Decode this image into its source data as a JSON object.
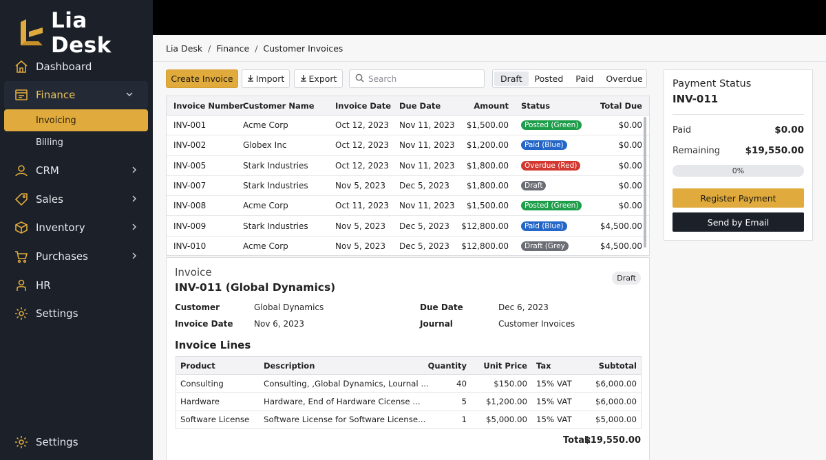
{
  "app": {
    "name": "Lia Desk"
  },
  "colors": {
    "accent": "#e0ab3c",
    "sidebar": "#1b2029",
    "green": "#1e9e4a",
    "blue": "#2467c9",
    "red": "#d2382f",
    "grey": "#6b6e74"
  },
  "sidebar": {
    "items": [
      {
        "label": "Dashboard",
        "icon": "home-icon"
      },
      {
        "label": "Finance",
        "icon": "ledger-icon"
      },
      {
        "label": "CRM",
        "icon": "user-icon"
      },
      {
        "label": "Sales",
        "icon": "tag-icon"
      },
      {
        "label": "Inventory",
        "icon": "box-icon"
      },
      {
        "label": "Purchases",
        "icon": "cart-icon"
      },
      {
        "label": "HR",
        "icon": "person-icon"
      },
      {
        "label": "Settings",
        "icon": "gear-icon"
      }
    ],
    "finance_sub": [
      "Invoicing",
      "Billing"
    ],
    "bottom_settings": "Settings"
  },
  "breadcrumb": [
    "Lia Desk",
    "Finance",
    "Customer Invoices"
  ],
  "toolbar": {
    "create": "Create Invoice",
    "import": "Import",
    "export": "Export",
    "search_placeholder": "Search",
    "filters": [
      "Draft",
      "Posted",
      "Paid",
      "Overdue"
    ]
  },
  "invoices": {
    "columns": [
      "Invoice Number",
      "Customer Name",
      "Invoice Date",
      "Due Date",
      "Amount",
      "Status",
      "Total Due"
    ],
    "rows": [
      {
        "num": "INV-001",
        "customer": "Acme Corp",
        "date": "Oct 12, 2023",
        "due": "Nov 11, 2023",
        "amount": "$1,500.00",
        "status": "Posted (Green)",
        "status_color": "#1e9e4a",
        "total": "$0.00"
      },
      {
        "num": "INV-002",
        "customer": "Globex Inc",
        "date": "Oct 12, 2023",
        "due": "Nov 11, 2023",
        "amount": "$1,200.00",
        "status": "Paid (Blue)",
        "status_color": "#2467c9",
        "total": "$0.00"
      },
      {
        "num": "INV-005",
        "customer": "Stark Industries",
        "date": "Oct 12, 2023",
        "due": "Nov 11, 2023",
        "amount": "$1,800.00",
        "status": "Overdue (Red)",
        "status_color": "#d2382f",
        "total": "$0.00"
      },
      {
        "num": "INV-007",
        "customer": "Stark Industries",
        "date": "Nov 5, 2023",
        "due": "Dec 5, 2023",
        "amount": "$1,800.00",
        "status": "Draft",
        "status_color": "#6b6e74",
        "total": "$0.00"
      },
      {
        "num": "INV-008",
        "customer": "Acme Corp",
        "date": "Oct 11, 2023",
        "due": "Nov 11, 2023",
        "amount": "$1,500.00",
        "status": "Posted (Green)",
        "status_color": "#1e9e4a",
        "total": "$0.00"
      },
      {
        "num": "INV-009",
        "customer": "Stark Industries",
        "date": "Nov 5, 2023",
        "due": "Dec 5, 2023",
        "amount": "$12,800.00",
        "status": "Paid (Blue)",
        "status_color": "#2467c9",
        "total": "$4,500.00"
      },
      {
        "num": "INV-010",
        "customer": "Acme Corp",
        "date": "Nov 5, 2023",
        "due": "Dec 5, 2023",
        "amount": "$12,800.00",
        "status": "Draft (Grey",
        "status_color": "#6b6e74",
        "total": "$4,500.00"
      }
    ]
  },
  "detail": {
    "title": "Invoice",
    "number": "INV-011 (Global Dynamics)",
    "status": "Draft",
    "customer_label": "Customer",
    "customer": "Global Dynamics",
    "invoice_date_label": "Invoice Date",
    "invoice_date": "Nov 6, 2023",
    "due_date_label": "Due Date",
    "due_date": "Dec 6, 2023",
    "journal_label": "Journal",
    "journal": "Customer Invoices",
    "lines_title": "Invoice Lines",
    "line_columns": [
      "Product",
      "Description",
      "Quantity",
      "Unit Price",
      "Tax",
      "Subtotal"
    ],
    "lines": [
      {
        "product": "Consulting",
        "desc": "Consulting, ,Global Dynamics, Lournal ...",
        "qty": "40",
        "price": "$150.00",
        "tax": "15% VAT",
        "subtotal": "$6,000.00"
      },
      {
        "product": "Hardware",
        "desc": "Hardware, End of Hardware Cicense ...",
        "qty": "5",
        "price": "$1,200.00",
        "tax": "15% VAT",
        "subtotal": "$6,000.00"
      },
      {
        "product": "Software License",
        "desc": "Software License for Software License...",
        "qty": "1",
        "price": "$5,000.00",
        "tax": "15% VAT",
        "subtotal": "$5,000.00"
      }
    ],
    "total_label": "Total:",
    "total": "$19,550.00"
  },
  "payment": {
    "title": "Payment Status",
    "invoice": "INV-011",
    "paid_label": "Paid",
    "paid": "$0.00",
    "remaining_label": "Remaining",
    "remaining": "$19,550.00",
    "progress_percent": 0,
    "progress_text": "0%",
    "register": "Register Payment",
    "send": "Send by Email"
  }
}
